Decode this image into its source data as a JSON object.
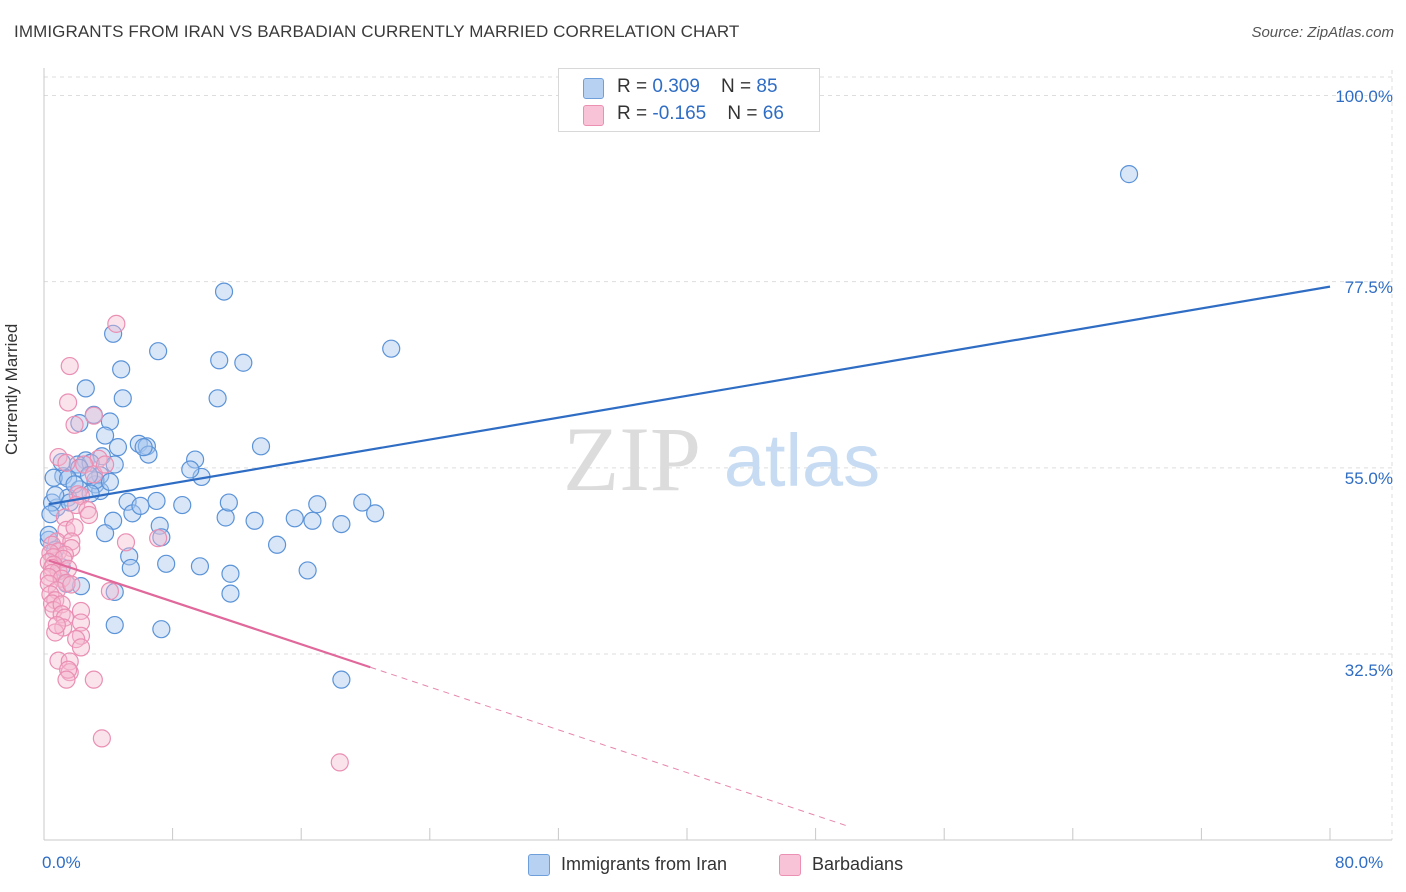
{
  "title": "IMMIGRANTS FROM IRAN VS BARBADIAN CURRENTLY MARRIED CORRELATION CHART",
  "source": "Source: ZipAtlas.com",
  "legend_top": {
    "rows": [
      {
        "r_label": "R = ",
        "r_value": "0.309",
        "n_label": "N = ",
        "n_value": "85"
      },
      {
        "r_label": "R = ",
        "r_value": "-0.165",
        "n_label": "N = ",
        "n_value": "66"
      }
    ]
  },
  "legend_bottom": [
    "Immigrants from Iran",
    "Barbadians"
  ],
  "watermark": {
    "zip": "ZIP",
    "atlas": "atlas"
  },
  "colors": {
    "blue": "#2f6dc4",
    "blue_fill": "#a8c8ef",
    "blue_stroke": "#5b93d8",
    "pink": "#e0689a",
    "pink_fill": "#f6b8cf",
    "pink_stroke": "#ea8fb3",
    "grid": "#dddddd",
    "axis_text": "#2f6dc4"
  },
  "chart_data": {
    "type": "scatter",
    "title": "IMMIGRANTS FROM IRAN VS BARBADIAN CURRENTLY MARRIED CORRELATION CHART",
    "xlabel": "",
    "ylabel": "Currently Married",
    "xlim": [
      0,
      80
    ],
    "ylim": [
      10,
      105
    ],
    "x_tick_labels": [
      "0.0%",
      "80.0%"
    ],
    "y_ticks": [
      {
        "value": 100,
        "label": "100.0%"
      },
      {
        "value": 77.5,
        "label": "77.5%"
      },
      {
        "value": 55,
        "label": "55.0%"
      },
      {
        "value": 32.5,
        "label": "32.5%"
      }
    ],
    "series": [
      {
        "name": "Immigrants from Iran",
        "R": 0.309,
        "N": 85,
        "trend": {
          "x0": 0.3,
          "y0": 50.6,
          "x1": 80.0,
          "y1": 76.9
        },
        "points": [
          [
            67.5,
            90.5
          ],
          [
            11.2,
            76.3
          ],
          [
            21.6,
            69.4
          ],
          [
            4.3,
            71.2
          ],
          [
            7.1,
            69.1
          ],
          [
            12.4,
            67.7
          ],
          [
            10.9,
            68.0
          ],
          [
            2.6,
            64.6
          ],
          [
            4.8,
            66.9
          ],
          [
            4.9,
            63.4
          ],
          [
            10.8,
            63.4
          ],
          [
            3.1,
            61.4
          ],
          [
            4.1,
            60.6
          ],
          [
            2.2,
            60.4
          ],
          [
            5.9,
            57.9
          ],
          [
            3.8,
            58.9
          ],
          [
            6.4,
            57.6
          ],
          [
            13.5,
            57.6
          ],
          [
            6.5,
            56.6
          ],
          [
            4.6,
            57.5
          ],
          [
            6.2,
            57.5
          ],
          [
            2.6,
            55.9
          ],
          [
            9.4,
            56.0
          ],
          [
            3.6,
            56.4
          ],
          [
            1.2,
            54.0
          ],
          [
            2.1,
            55.4
          ],
          [
            2.9,
            55.6
          ],
          [
            2.2,
            55.0
          ],
          [
            1.1,
            55.7
          ],
          [
            0.6,
            53.8
          ],
          [
            1.5,
            53.7
          ],
          [
            3.2,
            53.0
          ],
          [
            3.5,
            54.1
          ],
          [
            3.5,
            52.2
          ],
          [
            2.2,
            52.4
          ],
          [
            3.2,
            53.5
          ],
          [
            1.5,
            51.4
          ],
          [
            0.8,
            50.2
          ],
          [
            0.5,
            50.8
          ],
          [
            0.7,
            51.7
          ],
          [
            1.6,
            50.8
          ],
          [
            5.2,
            50.9
          ],
          [
            4.1,
            53.3
          ],
          [
            5.5,
            49.5
          ],
          [
            11.3,
            49.0
          ],
          [
            7.0,
            51.0
          ],
          [
            8.6,
            50.5
          ],
          [
            11.5,
            50.8
          ],
          [
            17.0,
            50.6
          ],
          [
            16.7,
            48.6
          ],
          [
            18.5,
            48.2
          ],
          [
            19.8,
            50.8
          ],
          [
            20.6,
            49.5
          ],
          [
            9.8,
            53.9
          ],
          [
            6.0,
            50.4
          ],
          [
            4.3,
            48.6
          ],
          [
            7.2,
            48.0
          ],
          [
            7.3,
            46.6
          ],
          [
            5.3,
            44.3
          ],
          [
            3.8,
            47.1
          ],
          [
            0.3,
            46.3
          ],
          [
            0.3,
            46.9
          ],
          [
            0.7,
            45.1
          ],
          [
            13.1,
            48.6
          ],
          [
            15.6,
            48.9
          ],
          [
            14.5,
            45.7
          ],
          [
            1.1,
            43.0
          ],
          [
            5.4,
            42.9
          ],
          [
            7.6,
            43.4
          ],
          [
            9.7,
            43.1
          ],
          [
            11.6,
            42.2
          ],
          [
            16.4,
            42.6
          ],
          [
            11.6,
            39.8
          ],
          [
            2.3,
            40.7
          ],
          [
            1.4,
            41.0
          ],
          [
            4.4,
            40.0
          ],
          [
            4.4,
            36.0
          ],
          [
            7.3,
            35.5
          ],
          [
            18.5,
            29.4
          ],
          [
            9.1,
            54.8
          ],
          [
            1.9,
            53.0
          ],
          [
            0.4,
            49.4
          ],
          [
            2.9,
            51.9
          ],
          [
            4.4,
            55.4
          ],
          [
            2.8,
            54.1
          ]
        ]
      },
      {
        "name": "Barbadians",
        "R": -0.165,
        "N": 66,
        "trend": {
          "x0": 0.3,
          "y0": 43.8,
          "x1": 20.3,
          "y1": 30.9,
          "dash_to": {
            "x": 50,
            "y": 11.7
          }
        },
        "points": [
          [
            4.5,
            72.4
          ],
          [
            1.6,
            67.3
          ],
          [
            1.5,
            62.9
          ],
          [
            3.1,
            61.3
          ],
          [
            1.9,
            60.2
          ],
          [
            0.9,
            56.3
          ],
          [
            1.4,
            55.6
          ],
          [
            3.4,
            56.1
          ],
          [
            2.5,
            55.4
          ],
          [
            3.1,
            54.2
          ],
          [
            3.8,
            55.4
          ],
          [
            2.1,
            51.8
          ],
          [
            2.3,
            51.6
          ],
          [
            2.0,
            50.5
          ],
          [
            2.7,
            49.9
          ],
          [
            2.8,
            49.3
          ],
          [
            1.3,
            49.0
          ],
          [
            1.4,
            47.5
          ],
          [
            1.9,
            47.8
          ],
          [
            0.8,
            46.1
          ],
          [
            1.7,
            46.1
          ],
          [
            5.1,
            46.0
          ],
          [
            7.1,
            46.5
          ],
          [
            0.5,
            45.7
          ],
          [
            1.7,
            45.3
          ],
          [
            0.9,
            44.9
          ],
          [
            1.3,
            44.5
          ],
          [
            0.4,
            44.7
          ],
          [
            0.6,
            44.2
          ],
          [
            1.2,
            44.0
          ],
          [
            0.3,
            43.6
          ],
          [
            0.6,
            43.3
          ],
          [
            0.5,
            42.9
          ],
          [
            0.9,
            42.5
          ],
          [
            1.5,
            42.8
          ],
          [
            0.5,
            42.3
          ],
          [
            0.3,
            41.8
          ],
          [
            1.1,
            41.6
          ],
          [
            0.3,
            41.0
          ],
          [
            1.4,
            41.1
          ],
          [
            0.8,
            40.2
          ],
          [
            1.7,
            40.9
          ],
          [
            0.4,
            39.7
          ],
          [
            0.7,
            39.0
          ],
          [
            4.1,
            40.1
          ],
          [
            0.5,
            38.6
          ],
          [
            0.6,
            37.8
          ],
          [
            1.1,
            38.5
          ],
          [
            1.1,
            37.3
          ],
          [
            2.3,
            37.7
          ],
          [
            1.3,
            36.9
          ],
          [
            2.3,
            36.3
          ],
          [
            1.2,
            35.7
          ],
          [
            0.7,
            35.1
          ],
          [
            2.3,
            34.7
          ],
          [
            2.0,
            34.3
          ],
          [
            2.3,
            33.3
          ],
          [
            0.9,
            31.7
          ],
          [
            1.6,
            31.6
          ],
          [
            1.6,
            30.3
          ],
          [
            1.5,
            30.6
          ],
          [
            1.4,
            29.4
          ],
          [
            3.1,
            29.4
          ],
          [
            3.6,
            22.3
          ],
          [
            18.4,
            19.4
          ],
          [
            0.8,
            36.0
          ]
        ]
      }
    ]
  }
}
